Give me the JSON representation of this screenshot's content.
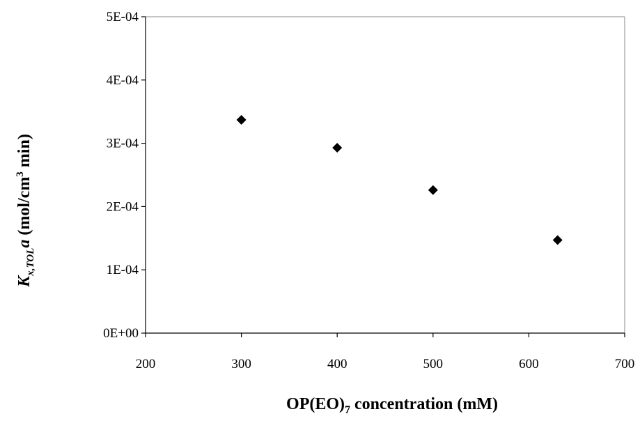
{
  "chart_data": {
    "type": "scatter",
    "title": "",
    "xlabel": {
      "main": "OP(EO)",
      "sub": "7",
      "rest": " concentration (mM)"
    },
    "ylabel": {
      "main": "K",
      "sub": "x,TOL",
      "italic2": "a",
      "rest": "  (mol/cm",
      "sup": "3",
      "rest2": " min)"
    },
    "xlim": [
      200,
      700
    ],
    "ylim": [
      0,
      0.0005
    ],
    "xticks": [
      200,
      300,
      400,
      500,
      600,
      700
    ],
    "xtick_labels": [
      "200",
      "300",
      "400",
      "500",
      "600",
      "700"
    ],
    "yticks": [
      0,
      0.0001,
      0.0002,
      0.0003,
      0.0004,
      0.0005
    ],
    "ytick_labels": [
      "0E+00",
      "1E-04",
      "2E-04",
      "3E-04",
      "4E-04",
      "5E-04"
    ],
    "grid": false,
    "legend": "none",
    "marker": "diamond",
    "marker_color": "#000000",
    "series": [
      {
        "x": [
          300,
          400,
          500,
          630
        ],
        "y": [
          0.000337,
          0.000293,
          0.000226,
          0.000147
        ]
      }
    ]
  }
}
